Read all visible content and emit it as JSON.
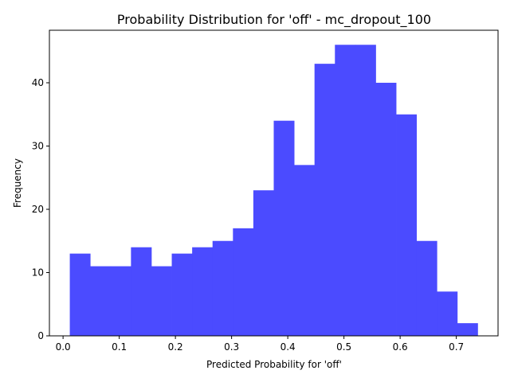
{
  "chart_data": {
    "type": "bar",
    "title": "Probability Distribution for 'off' - mc_dropout_100",
    "xlabel": "Predicted Probability for 'off'",
    "ylabel": "Frequency",
    "bar_color": "#4b4bff",
    "bin_edges": [
      0.012,
      0.0483,
      0.0846,
      0.1209,
      0.1572,
      0.1935,
      0.2298,
      0.2661,
      0.3024,
      0.3387,
      0.375,
      0.4113,
      0.4476,
      0.4839,
      0.5202,
      0.5565,
      0.5928,
      0.6291,
      0.6654,
      0.7017,
      0.738
    ],
    "values": [
      13,
      11,
      11,
      14,
      11,
      13,
      14,
      15,
      17,
      23,
      34,
      27,
      43,
      46,
      46,
      40,
      35,
      15,
      7,
      2
    ],
    "xlim": [
      -0.0243,
      0.7743
    ],
    "ylim": [
      0,
      48.3
    ],
    "xticks": [
      0.0,
      0.1,
      0.2,
      0.3,
      0.4,
      0.5,
      0.6,
      0.7
    ],
    "xtick_labels": [
      "0.0",
      "0.1",
      "0.2",
      "0.3",
      "0.4",
      "0.5",
      "0.6",
      "0.7"
    ],
    "yticks": [
      0,
      10,
      20,
      30,
      40
    ],
    "ytick_labels": [
      "0",
      "10",
      "20",
      "30",
      "40"
    ],
    "grid": false
  }
}
